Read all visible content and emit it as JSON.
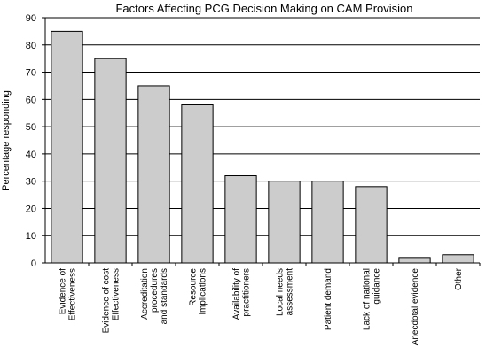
{
  "chart_data": {
    "type": "bar",
    "title": "Factors Affecting PCG Decision Making on CAM Provision",
    "xlabel": "",
    "ylabel": "Percentage responding",
    "ylim": [
      0,
      90
    ],
    "yticks": [
      0,
      10,
      20,
      30,
      40,
      50,
      60,
      70,
      80,
      90
    ],
    "grid": "horizontal",
    "categories": [
      [
        "Evidence of",
        "Effectiveness"
      ],
      [
        "Evidence of cost",
        "Effectiveness"
      ],
      [
        "Accreditation",
        "procedures",
        "and standards"
      ],
      [
        "Resource",
        "implications"
      ],
      [
        "Availability of",
        "practitioners"
      ],
      [
        "Local needs",
        "assessment"
      ],
      [
        "Patient demand"
      ],
      [
        "Lack of national",
        "guidance"
      ],
      [
        "Anecdotal evidence"
      ],
      [
        "Other"
      ]
    ],
    "values": [
      85,
      75,
      65,
      58,
      32,
      30,
      30,
      28,
      2,
      3
    ],
    "colors": {
      "bar_fill": "#cccccc",
      "bar_stroke": "#000000",
      "grid": "#000000"
    }
  }
}
